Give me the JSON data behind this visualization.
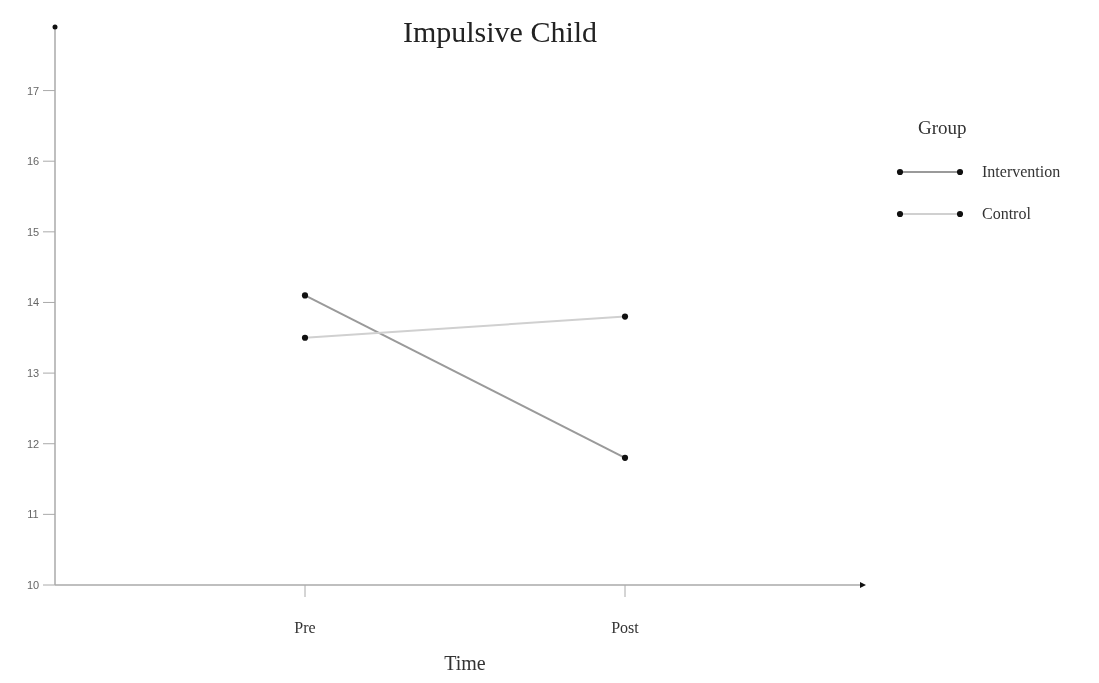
{
  "chart_data": {
    "type": "line",
    "title": "Impulsive Child",
    "xlabel": "Time",
    "legend_title": "Group",
    "categories": [
      "Pre",
      "Post"
    ],
    "series": [
      {
        "name": "Intervention",
        "color": "#9a9a9a",
        "values": [
          14.1,
          11.8
        ]
      },
      {
        "name": "Control",
        "color": "#d0d0d0",
        "values": [
          13.5,
          13.8
        ]
      }
    ],
    "ylim": [
      10,
      17.9
    ],
    "yticks": [
      10,
      11,
      12,
      13,
      14,
      15,
      16,
      17
    ],
    "marker": "circle",
    "legend": "top right",
    "grid": false
  }
}
